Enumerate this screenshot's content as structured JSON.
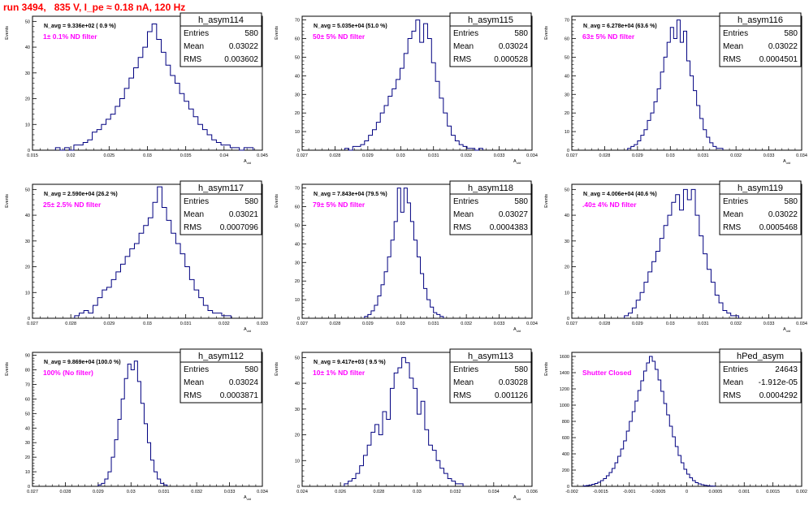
{
  "page": {
    "title": "run 3494,   835 V, I_pe ≈ 0.18 nA, 120 Hz"
  },
  "stats_labels": {
    "entries": "Entries",
    "mean": "Mean",
    "rms": "RMS"
  },
  "colors": {
    "histogram": "#000080",
    "annotation": "#ff00ff",
    "title": "#ff0000",
    "frame": "#000000"
  },
  "chart_data": [
    {
      "type": "bar",
      "name": "h_asym114",
      "navg": "N_avg = 9.336e+02 ( 0.9 %)",
      "filter": "1± 0.1% ND filter",
      "stats": {
        "entries": "580",
        "mean": "0.03022",
        "rms": "0.003602"
      },
      "ylabel": "Events",
      "xlabel": "A_uid",
      "xlim": [
        0.015,
        0.045
      ],
      "ylim": [
        0,
        52
      ],
      "xticks": [
        0.015,
        0.02,
        0.025,
        0.03,
        0.035,
        0.04,
        0.045
      ],
      "xtick_labels": [
        "0.015",
        "0.02",
        "0.025",
        "0.03",
        "0.035",
        "0.04",
        "0.045"
      ],
      "yticks": [
        0,
        10,
        20,
        30,
        40,
        50
      ],
      "bins": {
        "start": 0.018,
        "width": 0.0006,
        "values": [
          1,
          0,
          1,
          0,
          2,
          2,
          3,
          4,
          7,
          8,
          10,
          12,
          14,
          17,
          20,
          24,
          28,
          32,
          36,
          40,
          46,
          49,
          43,
          38,
          33,
          29,
          26,
          22,
          19,
          16,
          13,
          10,
          8,
          6,
          4,
          3,
          2,
          2,
          1,
          1,
          0,
          1,
          1
        ]
      }
    },
    {
      "type": "bar",
      "name": "h_asym115",
      "navg": "N_avg = 5.035e+04 (51.0 %)",
      "filter": "50± 5% ND filter",
      "stats": {
        "entries": "580",
        "mean": "0.03024",
        "rms": "0.000528"
      },
      "ylabel": "Events",
      "xlabel": "A_uid",
      "xlim": [
        0.027,
        0.034
      ],
      "ylim": [
        0,
        72
      ],
      "xticks": [
        0.027,
        0.028,
        0.029,
        0.03,
        0.031,
        0.032,
        0.033,
        0.034
      ],
      "xtick_labels": [
        "0.027",
        "0.028",
        "0.029",
        "0.03",
        "0.031",
        "0.032",
        "0.033",
        "0.034"
      ],
      "yticks": [
        0,
        10,
        20,
        30,
        40,
        50,
        60,
        70
      ],
      "bins": {
        "start": 0.0283,
        "width": 0.00012,
        "values": [
          1,
          0,
          2,
          2,
          3,
          5,
          8,
          11,
          15,
          20,
          24,
          29,
          33,
          38,
          44,
          52,
          60,
          64,
          70,
          58,
          68,
          60,
          47,
          37,
          28,
          20,
          13,
          8,
          5,
          3,
          2,
          1,
          1,
          0,
          1
        ]
      }
    },
    {
      "type": "bar",
      "name": "h_asym116",
      "navg": "N_avg = 6.278e+04 (63.6 %)",
      "filter": "63± 5% ND filter",
      "stats": {
        "entries": "580",
        "mean": "0.03022",
        "rms": "0.0004501"
      },
      "ylabel": "Events",
      "xlabel": "A_uid",
      "xlim": [
        0.027,
        0.034
      ],
      "ylim": [
        0,
        72
      ],
      "xticks": [
        0.027,
        0.028,
        0.029,
        0.03,
        0.031,
        0.032,
        0.033,
        0.034
      ],
      "xtick_labels": [
        "0.027",
        "0.028",
        "0.029",
        "0.03",
        "0.031",
        "0.032",
        "0.033",
        "0.034"
      ],
      "yticks": [
        0,
        10,
        20,
        30,
        40,
        50,
        60,
        70
      ],
      "bins": {
        "start": 0.0287,
        "width": 0.0001,
        "values": [
          1,
          2,
          3,
          5,
          8,
          11,
          16,
          20,
          26,
          33,
          42,
          50,
          58,
          66,
          60,
          70,
          58,
          64,
          48,
          40,
          32,
          24,
          17,
          11,
          7,
          4,
          2,
          1,
          1
        ]
      }
    },
    {
      "type": "bar",
      "name": "h_asym117",
      "navg": "N_avg = 2.590e+04 (26.2 %)",
      "filter": "25± 2.5% ND filter",
      "stats": {
        "entries": "580",
        "mean": "0.03021",
        "rms": "0.0007096"
      },
      "ylabel": "Events",
      "xlabel": "A_uid",
      "xlim": [
        0.027,
        0.033
      ],
      "ylim": [
        0,
        52
      ],
      "xticks": [
        0.027,
        0.028,
        0.029,
        0.03,
        0.031,
        0.032,
        0.033
      ],
      "xtick_labels": [
        "0.027",
        "0.028",
        "0.029",
        "0.03",
        "0.031",
        "0.032",
        "0.033"
      ],
      "yticks": [
        0,
        10,
        20,
        30,
        40,
        50
      ],
      "bins": {
        "start": 0.0281,
        "width": 0.00012,
        "values": [
          1,
          2,
          3,
          2,
          5,
          8,
          11,
          12,
          15,
          18,
          21,
          24,
          27,
          29,
          33,
          36,
          39,
          45,
          51,
          43,
          38,
          33,
          29,
          25,
          20,
          15,
          11,
          8,
          5,
          3,
          2,
          2,
          1,
          1
        ]
      }
    },
    {
      "type": "bar",
      "name": "h_asym118",
      "navg": "N_avg = 7.843e+04 (79.5 %)",
      "filter": "79± 5% ND filter",
      "stats": {
        "entries": "580",
        "mean": "0.03027",
        "rms": "0.0004383"
      },
      "ylabel": "Events",
      "xlabel": "A_uid",
      "xlim": [
        0.027,
        0.034
      ],
      "ylim": [
        0,
        72
      ],
      "xticks": [
        0.027,
        0.028,
        0.029,
        0.03,
        0.031,
        0.032,
        0.033,
        0.034
      ],
      "xtick_labels": [
        "0.027",
        "0.028",
        "0.029",
        "0.03",
        "0.031",
        "0.032",
        "0.033",
        "0.034"
      ],
      "yticks": [
        0,
        10,
        20,
        30,
        40,
        50,
        60,
        70
      ],
      "bins": {
        "start": 0.0289,
        "width": 0.0001,
        "values": [
          1,
          2,
          4,
          7,
          12,
          18,
          25,
          33,
          42,
          52,
          70,
          57,
          70,
          62,
          52,
          42,
          33,
          24,
          16,
          10,
          6,
          3,
          2,
          1
        ]
      }
    },
    {
      "type": "bar",
      "name": "h_asym119",
      "navg": "N_avg = 4.006e+04 (40.6 %)",
      "filter": ".40± 4% ND filter",
      "stats": {
        "entries": "580",
        "mean": "0.03022",
        "rms": "0.0005468"
      },
      "ylabel": "Events",
      "xlabel": "A_uid",
      "xlim": [
        0.027,
        0.034
      ],
      "ylim": [
        0,
        52
      ],
      "xticks": [
        0.027,
        0.028,
        0.029,
        0.03,
        0.031,
        0.032,
        0.033,
        0.034
      ],
      "xtick_labels": [
        "0.027",
        "0.028",
        "0.029",
        "0.03",
        "0.031",
        "0.032",
        "0.033",
        "0.034"
      ],
      "yticks": [
        0,
        10,
        20,
        30,
        40,
        50
      ],
      "bins": {
        "start": 0.0286,
        "width": 0.00012,
        "values": [
          1,
          2,
          4,
          7,
          10,
          14,
          18,
          22,
          26,
          31,
          36,
          40,
          45,
          48,
          42,
          50,
          46,
          50,
          40,
          32,
          25,
          19,
          14,
          9,
          6,
          3,
          2,
          1,
          1
        ]
      }
    },
    {
      "type": "bar",
      "name": "h_asym112",
      "navg": "N_avg = 9.869e+04 (100.0 %)",
      "filter": "100% (No filter)",
      "stats": {
        "entries": "580",
        "mean": "0.03024",
        "rms": "0.0003871"
      },
      "ylabel": "Events",
      "xlabel": "A_uid",
      "xlim": [
        0.027,
        0.034
      ],
      "ylim": [
        0,
        92
      ],
      "xticks": [
        0.027,
        0.028,
        0.029,
        0.03,
        0.031,
        0.032,
        0.033,
        0.034
      ],
      "xtick_labels": [
        "0.027",
        "0.028",
        "0.029",
        "0.03",
        "0.031",
        "0.032",
        "0.033",
        "0.034"
      ],
      "yticks": [
        0,
        10,
        20,
        30,
        40,
        50,
        60,
        70,
        80,
        90
      ],
      "bins": {
        "start": 0.029,
        "width": 0.0001,
        "values": [
          1,
          2,
          5,
          10,
          20,
          32,
          46,
          60,
          74,
          84,
          80,
          86,
          72,
          57,
          43,
          30,
          18,
          10,
          5,
          2,
          1
        ]
      }
    },
    {
      "type": "bar",
      "name": "h_asym113",
      "navg": "N_avg = 9.417e+03 ( 9.5 %)",
      "filter": "10± 1% ND filter",
      "stats": {
        "entries": "580",
        "mean": "0.03028",
        "rms": "0.001126"
      },
      "ylabel": "Events",
      "xlabel": "A_uid",
      "xlim": [
        0.024,
        0.036
      ],
      "ylim": [
        0,
        52
      ],
      "xticks": [
        0.024,
        0.026,
        0.028,
        0.03,
        0.032,
        0.034,
        0.036
      ],
      "xtick_labels": [
        "0.024",
        "0.026",
        "0.028",
        "0.03",
        "0.032",
        "0.034",
        "0.036"
      ],
      "yticks": [
        0,
        10,
        20,
        30,
        40,
        50
      ],
      "bins": {
        "start": 0.0262,
        "width": 0.0002,
        "values": [
          1,
          2,
          3,
          5,
          8,
          12,
          16,
          21,
          24,
          20,
          29,
          26,
          38,
          44,
          46,
          50,
          48,
          42,
          38,
          28,
          33,
          22,
          16,
          14,
          10,
          7,
          5,
          3,
          2,
          1,
          1
        ]
      }
    },
    {
      "type": "bar",
      "name": "hPed_asym",
      "navg": "",
      "filter": "Shutter Closed",
      "stats": {
        "entries": "24643",
        "mean": "-1.912e-05",
        "rms": "0.0004292"
      },
      "ylabel": "Events",
      "xlabel": "",
      "xlim": [
        -0.002,
        0.002
      ],
      "ylim": [
        0,
        1650
      ],
      "xticks": [
        -0.002,
        -0.0015,
        -0.001,
        -0.0005,
        0,
        0.0005,
        0.001,
        0.0015,
        0.002
      ],
      "xtick_labels": [
        "-0.002",
        "-0.0015",
        "-0.001",
        "-0.0005",
        "0",
        "0.0005",
        "0.001",
        "0.0015",
        "0.002"
      ],
      "yticks": [
        0,
        200,
        400,
        600,
        800,
        1000,
        1200,
        1400,
        1600
      ],
      "bins": {
        "start": -0.0018,
        "width": 5e-05,
        "values": [
          5,
          10,
          15,
          25,
          35,
          50,
          70,
          95,
          130,
          170,
          220,
          290,
          370,
          460,
          560,
          680,
          800,
          920,
          1050,
          1180,
          1300,
          1420,
          1520,
          1600,
          1540,
          1440,
          1310,
          1170,
          1020,
          880,
          740,
          610,
          490,
          380,
          290,
          210,
          150,
          105,
          70,
          45,
          30,
          20,
          12,
          7,
          4,
          2
        ]
      }
    }
  ]
}
